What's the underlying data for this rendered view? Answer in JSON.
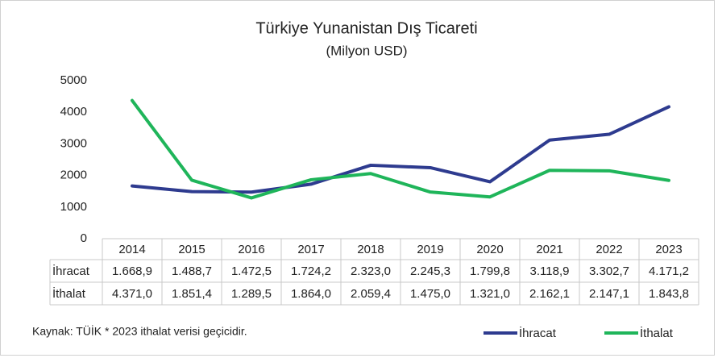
{
  "chart_data": {
    "type": "line",
    "title": "Türkiye Yunanistan Dış Ticareti",
    "subtitle": "(Milyon USD)",
    "source": "Kaynak: TÜİK * 2023 ithalat verisi geçicidir.",
    "categories": [
      "2014",
      "2015",
      "2016",
      "2017",
      "2018",
      "2019",
      "2020",
      "2021",
      "2022",
      "2023"
    ],
    "series": [
      {
        "name": "İhracat",
        "color": "#2e3b8f",
        "values": [
          1668.9,
          1488.7,
          1472.5,
          1724.2,
          2323.0,
          2245.3,
          1799.8,
          3118.9,
          3302.7,
          4171.2
        ],
        "value_labels": [
          "1.668,9",
          "1.488,7",
          "1.472,5",
          "1.724,2",
          "2.323,0",
          "2.245,3",
          "1.799,8",
          "3.118,9",
          "3.302,7",
          "4.171,2"
        ]
      },
      {
        "name": "İthalat",
        "color": "#1fb55a",
        "values": [
          4371.0,
          1851.4,
          1289.5,
          1864.0,
          2059.4,
          1475.0,
          1321.0,
          2162.1,
          2147.1,
          1843.8
        ],
        "value_labels": [
          "4.371,0",
          "1.851,4",
          "1.289,5",
          "1.864,0",
          "2.059,4",
          "1.475,0",
          "1.321,0",
          "2.162,1",
          "2.147,1",
          "1.843,8"
        ]
      }
    ],
    "ylim": [
      0,
      5000
    ],
    "yticks": [
      0,
      1000,
      2000,
      3000,
      4000,
      5000
    ],
    "grid": false,
    "legend": "bottom-right"
  }
}
